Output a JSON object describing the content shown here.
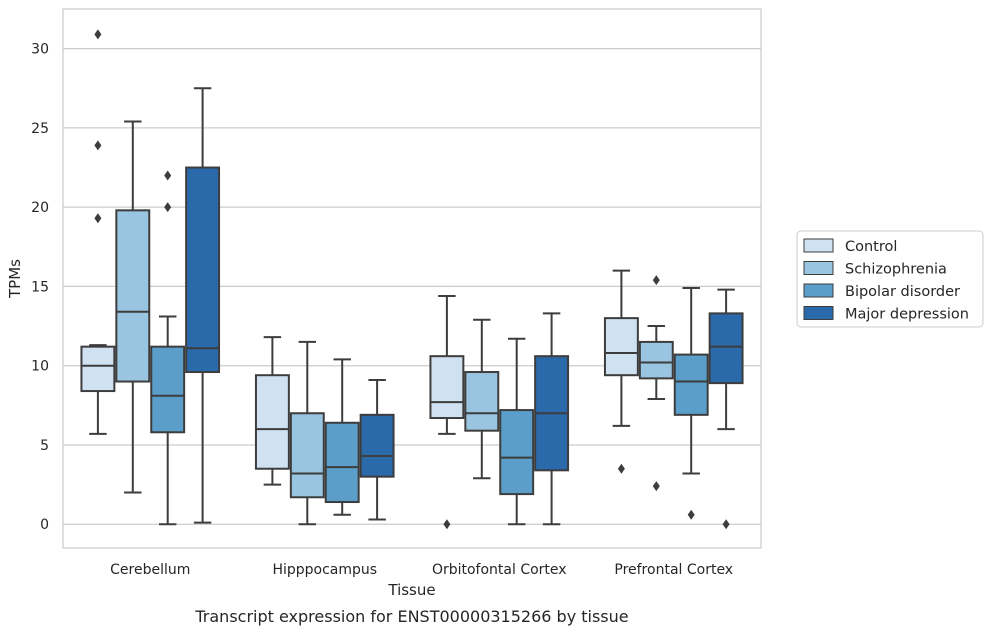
{
  "chart_data": {
    "type": "box",
    "title": "Transcript expression for ENST00000315266 by tissue",
    "xlabel": "Tissue",
    "ylabel": "TPMs",
    "ylim": [
      -1.5,
      32.5
    ],
    "yticks": [
      0,
      5,
      10,
      15,
      20,
      25,
      30
    ],
    "grid": "horizontal",
    "legend_position": "right",
    "categories": [
      "Cerebellum",
      "Hipppocampus",
      "Orbitofontal Cortex",
      "Prefrontal Cortex"
    ],
    "series": [
      {
        "name": "Control",
        "color": "#d0e1f2",
        "boxes": [
          {
            "whislo": 5.7,
            "q1": 8.4,
            "med": 10.0,
            "q3": 11.2,
            "whishi": 11.3,
            "fliers": [
              19.3,
              23.9,
              30.9
            ]
          },
          {
            "whislo": 2.5,
            "q1": 3.5,
            "med": 6.0,
            "q3": 9.4,
            "whishi": 11.8,
            "fliers": []
          },
          {
            "whislo": 5.7,
            "q1": 6.7,
            "med": 7.7,
            "q3": 10.6,
            "whishi": 14.4,
            "fliers": [
              0.0
            ]
          },
          {
            "whislo": 6.2,
            "q1": 9.4,
            "med": 10.8,
            "q3": 13.0,
            "whishi": 16.0,
            "fliers": [
              3.5
            ]
          }
        ]
      },
      {
        "name": "Schizophrenia",
        "color": "#9ac5e0",
        "boxes": [
          {
            "whislo": 2.0,
            "q1": 9.0,
            "med": 13.4,
            "q3": 19.8,
            "whishi": 25.4,
            "fliers": []
          },
          {
            "whislo": 0.0,
            "q1": 1.7,
            "med": 3.2,
            "q3": 7.0,
            "whishi": 11.5,
            "fliers": []
          },
          {
            "whislo": 2.9,
            "q1": 5.9,
            "med": 7.0,
            "q3": 9.6,
            "whishi": 12.9,
            "fliers": []
          },
          {
            "whislo": 7.9,
            "q1": 9.2,
            "med": 10.2,
            "q3": 11.5,
            "whishi": 12.5,
            "fliers": [
              2.4,
              15.4
            ]
          }
        ]
      },
      {
        "name": "Bipolar disorder",
        "color": "#5a9ec9",
        "boxes": [
          {
            "whislo": 0.0,
            "q1": 5.8,
            "med": 8.1,
            "q3": 11.2,
            "whishi": 13.1,
            "fliers": [
              20.0,
              22.0
            ]
          },
          {
            "whislo": 0.6,
            "q1": 1.4,
            "med": 3.6,
            "q3": 6.4,
            "whishi": 10.4,
            "fliers": []
          },
          {
            "whislo": 0.0,
            "q1": 1.9,
            "med": 4.2,
            "q3": 7.2,
            "whishi": 11.7,
            "fliers": []
          },
          {
            "whislo": 3.2,
            "q1": 6.9,
            "med": 9.0,
            "q3": 10.7,
            "whishi": 14.9,
            "fliers": [
              0.6
            ]
          }
        ]
      },
      {
        "name": "Major depression",
        "color": "#2a6aab",
        "boxes": [
          {
            "whislo": 0.1,
            "q1": 9.6,
            "med": 11.1,
            "q3": 22.5,
            "whishi": 27.5,
            "fliers": []
          },
          {
            "whislo": 0.3,
            "q1": 3.0,
            "med": 4.3,
            "q3": 6.9,
            "whishi": 9.1,
            "fliers": []
          },
          {
            "whislo": 0.0,
            "q1": 3.4,
            "med": 7.0,
            "q3": 10.6,
            "whishi": 13.3,
            "fliers": []
          },
          {
            "whislo": 6.0,
            "q1": 8.9,
            "med": 11.2,
            "q3": 13.3,
            "whishi": 14.8,
            "fliers": [
              0.0
            ]
          }
        ]
      }
    ]
  }
}
